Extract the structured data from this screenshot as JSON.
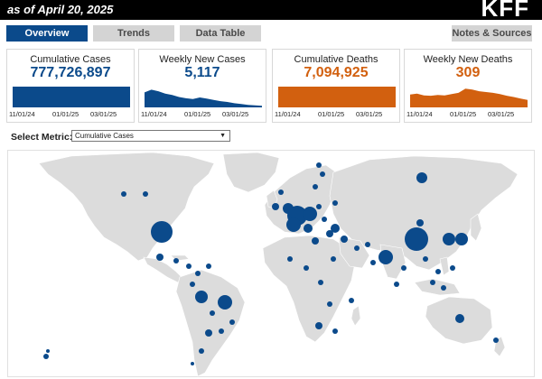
{
  "header": {
    "as_of": "as of April 20, 2025",
    "logo": "KFF"
  },
  "tabs": [
    {
      "label": "Overview",
      "active": true
    },
    {
      "label": "Trends",
      "active": false
    },
    {
      "label": "Data Table",
      "active": false
    },
    {
      "label": "Notes & Sources",
      "active": false
    }
  ],
  "colors": {
    "blue": "#0b4a8b",
    "orange": "#d2600f",
    "land": "#dcdcdc"
  },
  "cards": [
    {
      "label": "Cumulative Cases",
      "value": "777,726,897",
      "color": "blue",
      "kind": "bar",
      "ticks": [
        "11/01/24",
        "01/01/25",
        "03/01/25"
      ]
    },
    {
      "label": "Weekly New Cases",
      "value": "5,117",
      "color": "blue",
      "kind": "area",
      "series": [
        0.72,
        0.85,
        0.78,
        0.66,
        0.6,
        0.5,
        0.44,
        0.4,
        0.48,
        0.42,
        0.36,
        0.3,
        0.26,
        0.2,
        0.16,
        0.12,
        0.1,
        0.08
      ],
      "ticks": [
        "11/01/24",
        "01/01/25",
        "03/01/25"
      ]
    },
    {
      "label": "Cumulative Deaths",
      "value": "7,094,925",
      "color": "orange",
      "kind": "bar",
      "ticks": [
        "11/01/24",
        "01/01/25",
        "03/01/25"
      ]
    },
    {
      "label": "Weekly New Deaths",
      "value": "309",
      "color": "orange",
      "kind": "area",
      "series": [
        0.62,
        0.66,
        0.58,
        0.56,
        0.6,
        0.58,
        0.64,
        0.7,
        0.9,
        0.86,
        0.78,
        0.74,
        0.7,
        0.64,
        0.56,
        0.5,
        0.42,
        0.36
      ],
      "ticks": [
        "11/01/24",
        "01/01/25",
        "03/01/25"
      ]
    }
  ],
  "metric": {
    "label": "Select Metric:",
    "selected": "Cumulative Cases"
  }
}
